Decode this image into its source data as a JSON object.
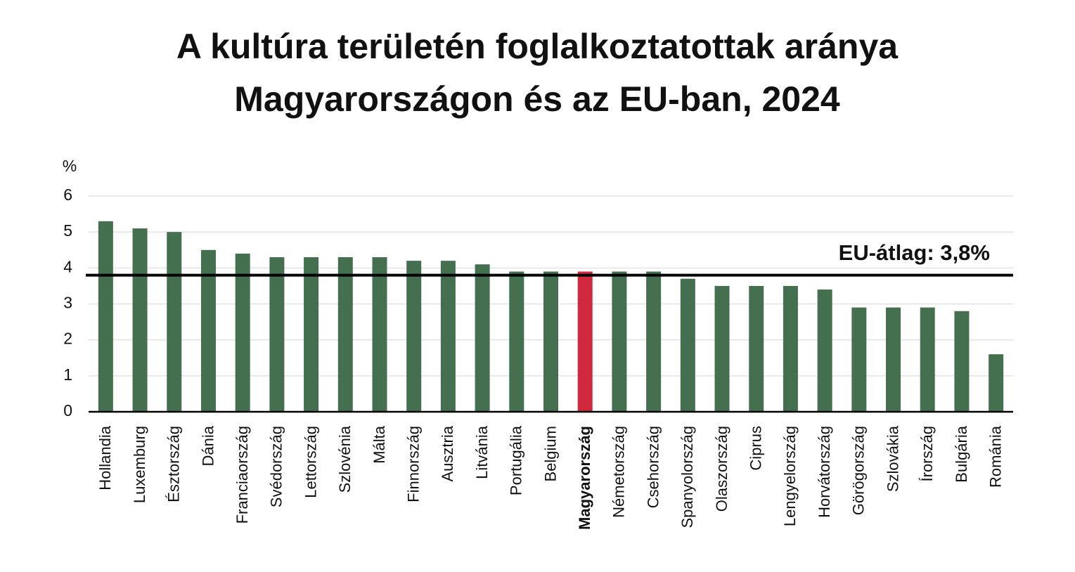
{
  "chart_data": {
    "type": "bar",
    "title": [
      "A kultúra területén foglalkoztatottak aránya",
      "Magyarországon és az EU-ban, 2024"
    ],
    "y_label": "%",
    "categories": [
      "Hollandia",
      "Luxemburg",
      "Észtország",
      "Dánia",
      "Franciaország",
      "Svédország",
      "Lettország",
      "Szlovénia",
      "Málta",
      "Finnország",
      "Ausztria",
      "Litvánia",
      "Portugália",
      "Belgium",
      "Magyarország",
      "Németország",
      "Csehország",
      "Spanyolország",
      "Olaszország",
      "Ciprus",
      "Lengyelország",
      "Horvátország",
      "Görögország",
      "Szlovákia",
      "Írország",
      "Bulgária",
      "Románia"
    ],
    "values": [
      5.3,
      5.1,
      5.0,
      4.5,
      4.4,
      4.3,
      4.3,
      4.3,
      4.3,
      4.2,
      4.2,
      4.1,
      3.9,
      3.9,
      3.9,
      3.9,
      3.9,
      3.7,
      3.5,
      3.5,
      3.5,
      3.4,
      2.9,
      2.9,
      2.9,
      2.8,
      1.6
    ],
    "color": "#44704f",
    "highlight": {
      "category": "Magyarország",
      "color": "#d0283e"
    },
    "reference_line": {
      "value": 3.8,
      "label": "EU-átlag: 3,8%"
    },
    "ylim": [
      0,
      6
    ],
    "yticks": [
      0,
      1,
      2,
      3,
      4,
      5,
      6
    ],
    "grid": true
  }
}
